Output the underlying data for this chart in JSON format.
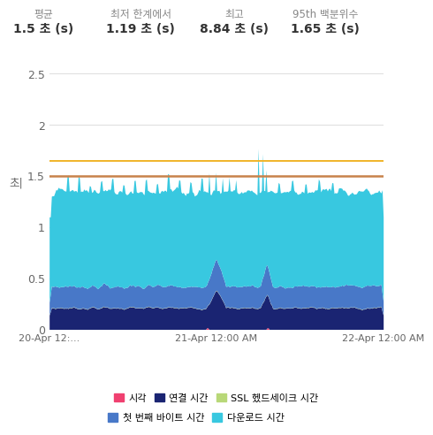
{
  "stats_labels": [
    "평균",
    "최저 한계에서",
    "최고",
    "95th 백분위수"
  ],
  "stats_values": [
    "1.5 초 (s)",
    "1.19 초 (s)",
    "8.84 초 (s)",
    "1.65 초 (s)"
  ],
  "hline_yellow": 1.65,
  "hline_brown": 1.5,
  "hline_yellow_color": "#f0b429",
  "hline_brown_color": "#c8824a",
  "ylim": [
    0,
    2.75
  ],
  "yticks": [
    0,
    0.5,
    1,
    1.5,
    2,
    2.5
  ],
  "xtick_positions": [
    0.0,
    0.5,
    1.0
  ],
  "xlabel_ticks": [
    "20-Apr 12:...",
    "21-Apr 12:00 AM",
    "22-Apr 12:00 AM"
  ],
  "colors_jinak": "#f04070",
  "colors_yeonggyeol": "#1a2472",
  "colors_ssl": "#b8d878",
  "colors_byte": "#4878c8",
  "colors_download": "#38c8e0",
  "legend_labels_row1": [
    "시각",
    "연결 시간",
    "SSL 헸드세이크 시간"
  ],
  "legend_labels_row2": [
    "첫 번째 바이트 시간",
    "다운로드 시간"
  ],
  "legend_colors_row1": [
    "#f04070",
    "#1a2472",
    "#b8d878"
  ],
  "legend_colors_row2": [
    "#4878c8",
    "#38c8e0"
  ],
  "background_color": "#ffffff",
  "grid_color": "#dddddd",
  "n_points": 300
}
